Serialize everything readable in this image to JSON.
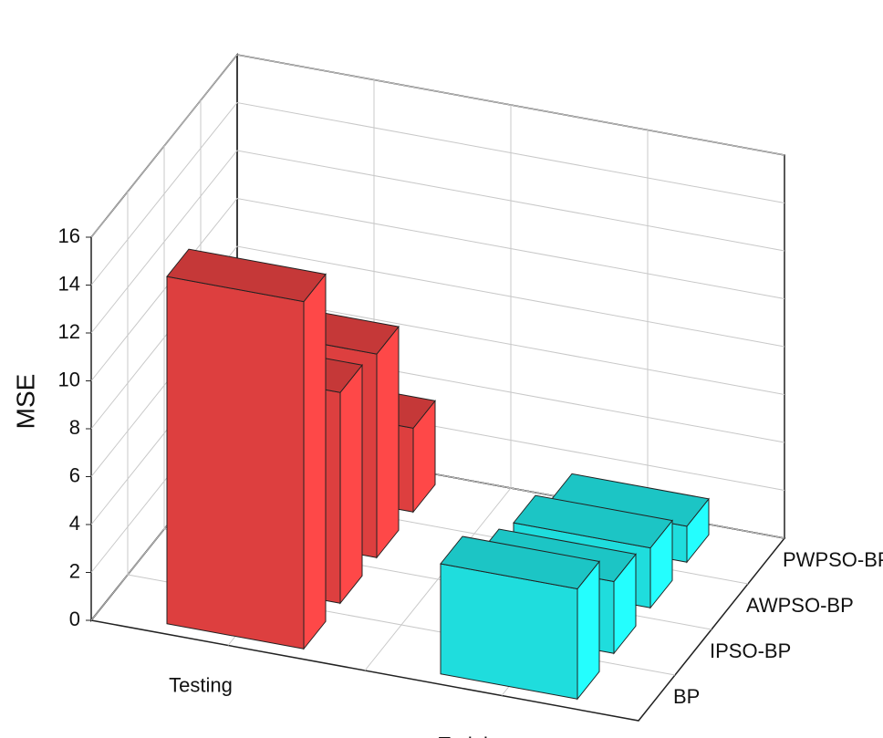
{
  "chart_data": {
    "type": "bar3d",
    "y_label": "MSE",
    "categories": [
      "Testing",
      "Training"
    ],
    "colors": [
      "#f04444",
      "#22f0f0"
    ],
    "series": [
      {
        "name": "BP",
        "values": [
          14.5,
          4.6
        ]
      },
      {
        "name": "IPSO-BP",
        "values": [
          8.8,
          3.0
        ]
      },
      {
        "name": "AWPSO-BP",
        "values": [
          8.5,
          2.5
        ]
      },
      {
        "name": "PWPSO-BP",
        "values": [
          3.5,
          1.5
        ]
      }
    ],
    "ylim": [
      0,
      16
    ],
    "yticks": [
      0,
      2,
      4,
      6,
      8,
      10,
      12,
      14,
      16
    ],
    "grid": true
  }
}
